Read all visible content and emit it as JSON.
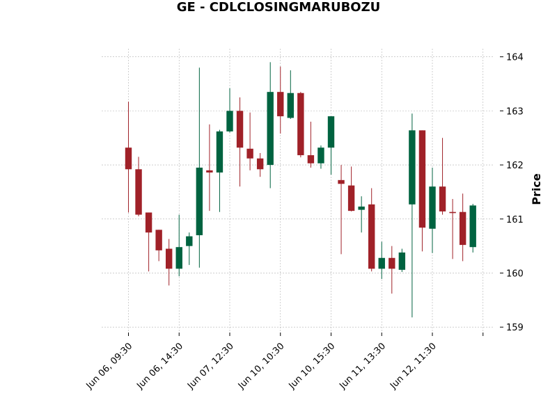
{
  "chart_data": {
    "type": "candlestick",
    "title": "GE - CDLCLOSINGMARUBOZU",
    "xlabel": "",
    "ylabel": "Price",
    "ylim": [
      158.9,
      164.15
    ],
    "yticks": [
      159,
      160,
      161,
      162,
      163,
      164
    ],
    "grid": true,
    "colors": {
      "up": "#006340",
      "down": "#a02128",
      "grid": "#b0b0b0"
    },
    "xtick_labels": [
      {
        "index": 0,
        "label": "Jun 06, 09:30"
      },
      {
        "index": 5,
        "label": "Jun 06, 14:30"
      },
      {
        "index": 10,
        "label": "Jun 07, 12:30"
      },
      {
        "index": 15,
        "label": "Jun 10, 10:30"
      },
      {
        "index": 20,
        "label": "Jun 10, 15:30"
      },
      {
        "index": 25,
        "label": "Jun 11, 13:30"
      },
      {
        "index": 30,
        "label": "Jun 12, 11:30"
      },
      {
        "index": 35,
        "label": ""
      }
    ],
    "candles": [
      {
        "o": 162.32,
        "h": 163.17,
        "l": 161.12,
        "c": 161.92
      },
      {
        "o": 161.92,
        "h": 162.15,
        "l": 161.05,
        "c": 161.08
      },
      {
        "o": 161.12,
        "h": 161.12,
        "l": 160.03,
        "c": 160.75
      },
      {
        "o": 160.8,
        "h": 160.8,
        "l": 160.22,
        "c": 160.42
      },
      {
        "o": 160.45,
        "h": 160.63,
        "l": 159.77,
        "c": 160.08
      },
      {
        "o": 160.08,
        "h": 161.08,
        "l": 159.94,
        "c": 160.48
      },
      {
        "o": 160.5,
        "h": 160.75,
        "l": 160.15,
        "c": 160.68
      },
      {
        "o": 160.7,
        "h": 163.8,
        "l": 160.1,
        "c": 161.95
      },
      {
        "o": 161.9,
        "h": 162.75,
        "l": 161.15,
        "c": 161.86
      },
      {
        "o": 161.86,
        "h": 162.65,
        "l": 161.13,
        "c": 162.62
      },
      {
        "o": 162.62,
        "h": 163.42,
        "l": 162.6,
        "c": 163.0
      },
      {
        "o": 163.0,
        "h": 163.25,
        "l": 161.6,
        "c": 162.32
      },
      {
        "o": 162.3,
        "h": 162.97,
        "l": 161.9,
        "c": 162.12
      },
      {
        "o": 162.12,
        "h": 162.22,
        "l": 161.78,
        "c": 161.92
      },
      {
        "o": 162.0,
        "h": 163.9,
        "l": 161.57,
        "c": 163.35
      },
      {
        "o": 163.35,
        "h": 163.82,
        "l": 162.58,
        "c": 162.9
      },
      {
        "o": 162.87,
        "h": 163.75,
        "l": 162.85,
        "c": 163.33
      },
      {
        "o": 163.33,
        "h": 163.35,
        "l": 162.14,
        "c": 162.18
      },
      {
        "o": 162.18,
        "h": 162.8,
        "l": 161.95,
        "c": 162.03
      },
      {
        "o": 162.03,
        "h": 162.36,
        "l": 161.93,
        "c": 162.32
      },
      {
        "o": 162.32,
        "h": 162.9,
        "l": 161.82,
        "c": 162.9
      },
      {
        "o": 161.72,
        "h": 162.0,
        "l": 160.35,
        "c": 161.65
      },
      {
        "o": 161.62,
        "h": 161.97,
        "l": 161.14,
        "c": 161.15
      },
      {
        "o": 161.17,
        "h": 161.42,
        "l": 160.75,
        "c": 161.23
      },
      {
        "o": 161.27,
        "h": 161.57,
        "l": 160.03,
        "c": 160.08
      },
      {
        "o": 160.08,
        "h": 160.58,
        "l": 159.89,
        "c": 160.28
      },
      {
        "o": 160.28,
        "h": 160.5,
        "l": 159.62,
        "c": 160.08
      },
      {
        "o": 160.06,
        "h": 160.45,
        "l": 160.02,
        "c": 160.38
      },
      {
        "o": 161.27,
        "h": 162.95,
        "l": 159.18,
        "c": 162.64
      },
      {
        "o": 162.64,
        "h": 162.64,
        "l": 160.4,
        "c": 160.84
      },
      {
        "o": 160.82,
        "h": 161.95,
        "l": 160.37,
        "c": 161.6
      },
      {
        "o": 161.6,
        "h": 162.5,
        "l": 161.08,
        "c": 161.14
      },
      {
        "o": 161.13,
        "h": 161.37,
        "l": 160.26,
        "c": 161.11
      },
      {
        "o": 161.13,
        "h": 161.47,
        "l": 160.22,
        "c": 160.52
      },
      {
        "o": 160.48,
        "h": 161.28,
        "l": 160.38,
        "c": 161.25
      }
    ]
  }
}
